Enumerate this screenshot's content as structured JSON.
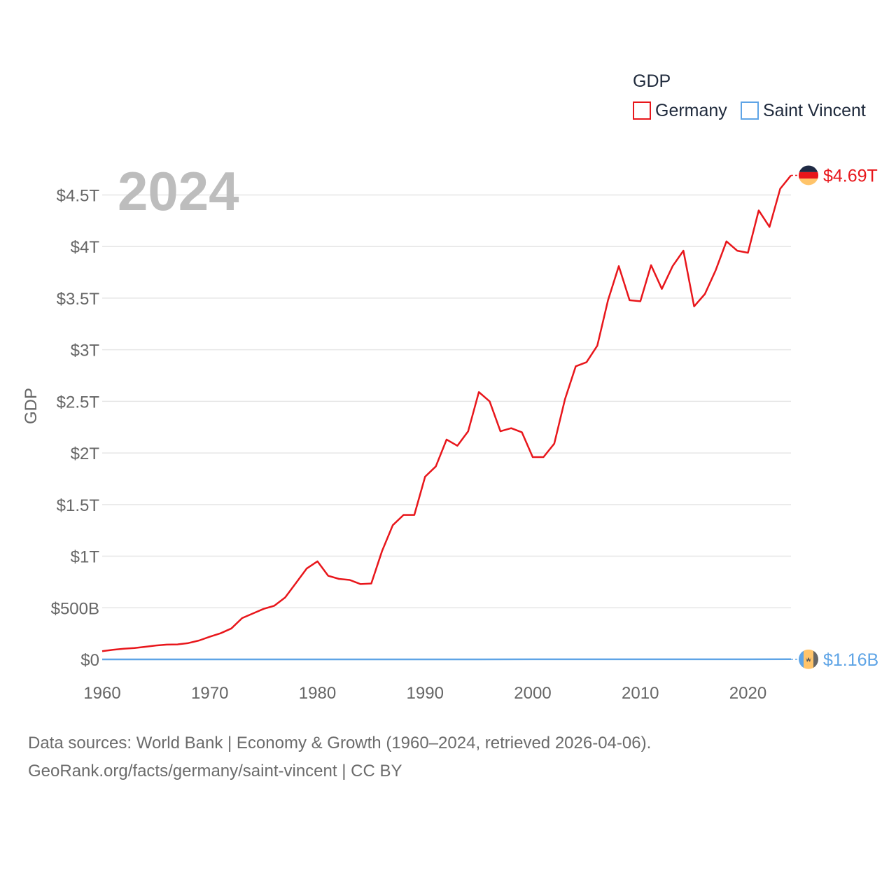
{
  "chart_data": {
    "type": "line",
    "current_year": "2024",
    "ylabel": "GDP",
    "ylim": [
      0,
      4700000000000
    ],
    "xlim": [
      1960,
      2024
    ],
    "x_ticks": [
      {
        "value": 1960,
        "label": "1960"
      },
      {
        "value": 1970,
        "label": "1970"
      },
      {
        "value": 1980,
        "label": "1980"
      },
      {
        "value": 1990,
        "label": "1990"
      },
      {
        "value": 2000,
        "label": "2000"
      },
      {
        "value": 2010,
        "label": "2010"
      },
      {
        "value": 2020,
        "label": "2020"
      }
    ],
    "y_ticks": [
      {
        "value": 0,
        "label": "$0"
      },
      {
        "value": 500000000000,
        "label": "$500B"
      },
      {
        "value": 1000000000000,
        "label": "$1T"
      },
      {
        "value": 1500000000000,
        "label": "$1.5T"
      },
      {
        "value": 2000000000000,
        "label": "$2T"
      },
      {
        "value": 2500000000000,
        "label": "$2.5T"
      },
      {
        "value": 3000000000000,
        "label": "$3T"
      },
      {
        "value": 3500000000000,
        "label": "$3.5T"
      },
      {
        "value": 4000000000000,
        "label": "$4T"
      },
      {
        "value": 4500000000000,
        "label": "$4.5T"
      }
    ],
    "legend": {
      "title": "GDP",
      "position": "top-right"
    },
    "series": [
      {
        "name": "Germany",
        "color": "#e8161b",
        "end_label": "$4.69T",
        "flag_icon": "germany-flag-icon",
        "x": [
          1960,
          1961,
          1962,
          1963,
          1964,
          1965,
          1966,
          1967,
          1968,
          1969,
          1970,
          1971,
          1972,
          1973,
          1974,
          1975,
          1976,
          1977,
          1978,
          1979,
          1980,
          1981,
          1982,
          1983,
          1984,
          1985,
          1986,
          1987,
          1988,
          1989,
          1990,
          1991,
          1992,
          1993,
          1994,
          1995,
          1996,
          1997,
          1998,
          1999,
          2000,
          2001,
          2002,
          2003,
          2004,
          2005,
          2006,
          2007,
          2008,
          2009,
          2010,
          2011,
          2012,
          2013,
          2014,
          2015,
          2016,
          2017,
          2018,
          2019,
          2020,
          2021,
          2022,
          2023,
          2024
        ],
        "values": [
          80000000000,
          93000000000,
          104000000000,
          110000000000,
          122000000000,
          135000000000,
          143000000000,
          145000000000,
          158000000000,
          183000000000,
          220000000000,
          253000000000,
          300000000000,
          400000000000,
          445000000000,
          490000000000,
          520000000000,
          600000000000,
          740000000000,
          880000000000,
          950000000000,
          810000000000,
          780000000000,
          770000000000,
          730000000000,
          735000000000,
          1050000000000,
          1300000000000,
          1400000000000,
          1400000000000,
          1770000000000,
          1870000000000,
          2130000000000,
          2070000000000,
          2210000000000,
          2590000000000,
          2500000000000,
          2210000000000,
          2240000000000,
          2200000000000,
          1960000000000,
          1960000000000,
          2090000000000,
          2520000000000,
          2840000000000,
          2880000000000,
          3040000000000,
          3480000000000,
          3810000000000,
          3480000000000,
          3470000000000,
          3820000000000,
          3590000000000,
          3810000000000,
          3960000000000,
          3420000000000,
          3540000000000,
          3770000000000,
          4050000000000,
          3960000000000,
          3940000000000,
          4350000000000,
          4190000000000,
          4560000000000,
          4690000000000
        ]
      },
      {
        "name": "Saint Vincent",
        "color": "#5ea4e6",
        "end_label": "$1.16B",
        "flag_icon": "saint-vincent-flag-icon",
        "x": [
          1960,
          1965,
          1970,
          1975,
          1980,
          1985,
          1990,
          1995,
          2000,
          2005,
          2010,
          2015,
          2020,
          2024
        ],
        "values": [
          11000000,
          16000000,
          22000000,
          35000000,
          65000000,
          110000000,
          200000000,
          290000000,
          400000000,
          560000000,
          680000000,
          760000000,
          830000000,
          1160000000
        ]
      }
    ]
  },
  "footer": {
    "source_line": "Data sources: World Bank | Economy & Growth (1960–2024, retrieved 2026-04-06).",
    "url_line": "GeoRank.org/facts/germany/saint-vincent | CC BY"
  }
}
